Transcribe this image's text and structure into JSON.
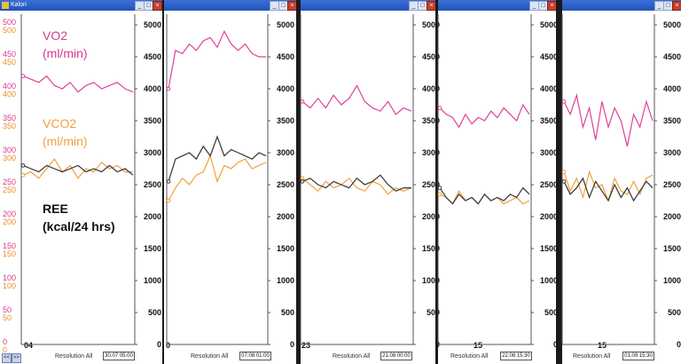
{
  "window": {
    "title": "Kalori"
  },
  "legend": {
    "vo2": "VO2\n(ml/min)",
    "vco2": "VCO2\n(ml/min)",
    "ree": "REE\n(kcal/24 hrs)"
  },
  "left_axis": {
    "vo2_ticks": [
      "500",
      "450",
      "400",
      "350",
      "300",
      "250",
      "200",
      "150",
      "100",
      "50",
      "0"
    ],
    "vco2_ticks": [
      "500",
      "450",
      "400",
      "350",
      "300",
      "250",
      "200",
      "150",
      "100",
      "50",
      "0"
    ]
  },
  "right_axis": {
    "ticks": [
      "5000",
      "4500",
      "4000",
      "3500",
      "3000",
      "2500",
      "2000",
      "1500",
      "1000",
      "500",
      "0"
    ]
  },
  "colors": {
    "vo2": "#e0409c",
    "vco2": "#f0a040",
    "ree": "#333333"
  },
  "footer": {
    "resolution_label": "Resolution All"
  },
  "nav": {
    "prev": "<<",
    "next": ">>"
  },
  "panels": [
    {
      "x_label": "04",
      "timestamp": "30.07 05:00"
    },
    {
      "x_label": "0",
      "timestamp": "07.08 01:00"
    },
    {
      "x_label": "23",
      "timestamp": "21.08 00:00"
    },
    {
      "x_label": "15",
      "timestamp": "22.08 15:30"
    },
    {
      "x_label": "15",
      "timestamp": "01.09 15:30"
    }
  ],
  "chart_data": {
    "type": "line",
    "y_right_ylim": [
      0,
      5000
    ],
    "y_left_ylim": [
      0,
      500
    ],
    "series": [
      {
        "name": "VO2",
        "unit": "ml/min",
        "panels": [
          [
            4200,
            4150,
            4100,
            4200,
            4050,
            4000,
            4100,
            3950,
            4050,
            4100,
            4000,
            4050,
            4100,
            4000,
            3950
          ],
          [
            4000,
            4600,
            4550,
            4700,
            4600,
            4750,
            4800,
            4650,
            4900,
            4700,
            4600,
            4700,
            4550,
            4500,
            4500
          ],
          [
            3800,
            3700,
            3850,
            3700,
            3900,
            3750,
            3850,
            4050,
            3800,
            3700,
            3650,
            3800,
            3600,
            3700,
            3650
          ],
          [
            3700,
            3600,
            3550,
            3400,
            3600,
            3450,
            3550,
            3500,
            3650,
            3550,
            3700,
            3600,
            3500,
            3750,
            3600
          ],
          [
            3800,
            3600,
            3900,
            3400,
            3700,
            3200,
            3800,
            3400,
            3700,
            3500,
            3100,
            3600,
            3400,
            3800,
            3500
          ]
        ]
      },
      {
        "name": "VCO2",
        "unit": "ml/min",
        "panels": [
          [
            2650,
            2700,
            2600,
            2750,
            2900,
            2700,
            2800,
            2600,
            2750,
            2700,
            2850,
            2750,
            2800,
            2700,
            2700
          ],
          [
            2250,
            2450,
            2600,
            2500,
            2650,
            2700,
            2950,
            2550,
            2800,
            2750,
            2850,
            2900,
            2750,
            2800,
            2850
          ],
          [
            2600,
            2500,
            2400,
            2550,
            2450,
            2500,
            2600,
            2450,
            2400,
            2550,
            2500,
            2350,
            2450,
            2400,
            2450
          ],
          [
            2350,
            2300,
            2200,
            2400,
            2250,
            2300,
            2200,
            2350,
            2250,
            2300,
            2200,
            2250,
            2300,
            2200,
            2250
          ],
          [
            2700,
            2400,
            2600,
            2300,
            2700,
            2450,
            2500,
            2250,
            2600,
            2400,
            2350,
            2550,
            2350,
            2600,
            2650
          ]
        ]
      },
      {
        "name": "REE",
        "unit": "kcal/24 hrs",
        "panels": [
          [
            2800,
            2750,
            2700,
            2800,
            2750,
            2700,
            2750,
            2800,
            2700,
            2750,
            2700,
            2800,
            2700,
            2750,
            2650
          ],
          [
            2550,
            2900,
            2950,
            3000,
            2900,
            3100,
            2950,
            3250,
            2950,
            3050,
            3000,
            2950,
            2900,
            3000,
            2950
          ],
          [
            2550,
            2600,
            2500,
            2450,
            2550,
            2500,
            2450,
            2600,
            2500,
            2550,
            2650,
            2500,
            2400,
            2450,
            2450
          ],
          [
            2450,
            2300,
            2200,
            2350,
            2250,
            2300,
            2200,
            2350,
            2250,
            2300,
            2250,
            2350,
            2300,
            2450,
            2350
          ],
          [
            2550,
            2350,
            2450,
            2600,
            2300,
            2550,
            2400,
            2250,
            2500,
            2300,
            2450,
            2250,
            2400,
            2550,
            2450
          ]
        ]
      }
    ]
  }
}
